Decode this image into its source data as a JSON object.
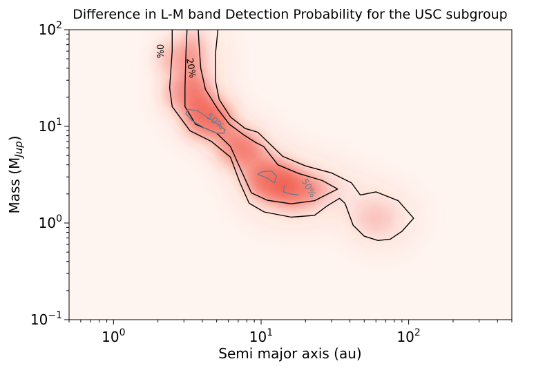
{
  "chart_data": {
    "type": "heatmap",
    "title": "Difference in L-M band Detection Probability for the USC subgroup",
    "xlabel": "Semi major axis (au)",
    "ylabel": {
      "main": "Mass (M",
      "sub": "Jup",
      "close": ")"
    },
    "xscale": "log",
    "yscale": "log",
    "xlim": [
      0.5,
      500
    ],
    "ylim": [
      0.1,
      100
    ],
    "xticks": [
      {
        "value": 1,
        "base": "10",
        "exp": "0"
      },
      {
        "value": 10,
        "base": "10",
        "exp": "1"
      },
      {
        "value": 100,
        "base": "10",
        "exp": "2"
      }
    ],
    "yticks": [
      {
        "value": 0.1,
        "base": "10",
        "exp": "−1"
      },
      {
        "value": 1,
        "base": "10",
        "exp": "0"
      },
      {
        "value": 10,
        "base": "10",
        "exp": "1"
      },
      {
        "value": 100,
        "base": "10",
        "exp": "2"
      }
    ],
    "colormap": {
      "low": "#fff5f0",
      "high": "#ef3b2c"
    },
    "contour_levels": [
      {
        "label": "0%",
        "color": "#000000"
      },
      {
        "label": "20%",
        "color": "#000000"
      },
      {
        "label": "50%",
        "color": "#6e7b8b"
      }
    ],
    "hotspots": [
      {
        "a": 4.4,
        "m": 12,
        "intensity": 0.95
      },
      {
        "a": 3.2,
        "m": 22,
        "intensity": 0.75
      },
      {
        "a": 2.8,
        "m": 50,
        "intensity": 0.55
      },
      {
        "a": 7,
        "m": 6,
        "intensity": 0.7
      },
      {
        "a": 12,
        "m": 2.8,
        "intensity": 0.85
      },
      {
        "a": 17,
        "m": 2.2,
        "intensity": 0.7
      },
      {
        "a": 60,
        "m": 1.1,
        "intensity": 0.3
      }
    ],
    "contour_0": [
      [
        2.5,
        100
      ],
      [
        2.5,
        60
      ],
      [
        2.4,
        25
      ],
      [
        2.5,
        16
      ],
      [
        3.3,
        9
      ],
      [
        4.6,
        7
      ],
      [
        6.2,
        4.8
      ],
      [
        7.2,
        2.6
      ],
      [
        8.3,
        1.6
      ],
      [
        10.5,
        1.3
      ],
      [
        16,
        1.15
      ],
      [
        23,
        1.2
      ],
      [
        28,
        1.5
      ],
      [
        34,
        1.8
      ],
      [
        37,
        1.6
      ],
      [
        42,
        0.95
      ],
      [
        50,
        0.73
      ],
      [
        62,
        0.66
      ],
      [
        75,
        0.68
      ],
      [
        90,
        0.82
      ],
      [
        108,
        1.12
      ],
      [
        85,
        1.7
      ],
      [
        60,
        2.1
      ],
      [
        47,
        1.95
      ],
      [
        41,
        2.6
      ],
      [
        30,
        3.3
      ],
      [
        20,
        3.9
      ],
      [
        14,
        4.9
      ],
      [
        11,
        7
      ],
      [
        9.5,
        8.7
      ],
      [
        7.8,
        9.5
      ],
      [
        6.2,
        12.5
      ],
      [
        5.2,
        19
      ],
      [
        4.9,
        30
      ],
      [
        4.9,
        55
      ],
      [
        5.1,
        100
      ]
    ],
    "contour_20": [
      [
        3.15,
        100
      ],
      [
        3.1,
        60
      ],
      [
        3.05,
        25
      ],
      [
        3.05,
        16
      ],
      [
        3.6,
        10.5
      ],
      [
        5,
        8.5
      ],
      [
        6.2,
        6.2
      ],
      [
        7.4,
        3.4
      ],
      [
        8.6,
        2.05
      ],
      [
        11,
        1.72
      ],
      [
        16,
        1.58
      ],
      [
        23,
        1.7
      ],
      [
        33,
        2.25
      ],
      [
        26,
        2.75
      ],
      [
        18,
        3.25
      ],
      [
        13,
        4
      ],
      [
        10.4,
        6.2
      ],
      [
        9.2,
        6.8
      ],
      [
        7.6,
        8.2
      ],
      [
        6.1,
        10.5
      ],
      [
        5.1,
        15
      ],
      [
        4.2,
        24
      ],
      [
        3.9,
        40
      ],
      [
        3.8,
        70
      ],
      [
        3.75,
        100
      ]
    ],
    "contour_50_a": [
      [
        3.2,
        15
      ],
      [
        3.1,
        13.5
      ],
      [
        3.4,
        11.5
      ],
      [
        4.2,
        9.5
      ],
      [
        5,
        8.5
      ],
      [
        5.6,
        8.5
      ],
      [
        5.7,
        9.2
      ],
      [
        5.1,
        10.5
      ],
      [
        4.3,
        12.5
      ],
      [
        3.7,
        14.5
      ],
      [
        3.2,
        15
      ]
    ],
    "contour_50_b": [
      [
        9.5,
        3.2
      ],
      [
        10.2,
        3.4
      ],
      [
        11.8,
        3.45
      ],
      [
        12.7,
        3.05
      ],
      [
        12.3,
        2.6
      ],
      [
        11.1,
        2.9
      ],
      [
        9.5,
        3.2
      ]
    ],
    "contour_50_c": [
      [
        14.4,
        2.45
      ],
      [
        14.2,
        2.1
      ],
      [
        15.8,
        2.0
      ],
      [
        18,
        1.95
      ]
    ],
    "contour_labels": [
      {
        "text": "0%",
        "a": 2.05,
        "m": 60,
        "rotation": 90,
        "color": "#000000"
      },
      {
        "text": "20%",
        "a": 3.35,
        "m": 40,
        "rotation": 80,
        "color": "#000000"
      },
      {
        "text": "50%",
        "a": 4.9,
        "m": 11.2,
        "rotation": 40,
        "color": "#6e7b8b"
      },
      {
        "text": "50%",
        "a": 21,
        "m": 2.3,
        "rotation": 60,
        "color": "#6e7b8b"
      }
    ]
  }
}
